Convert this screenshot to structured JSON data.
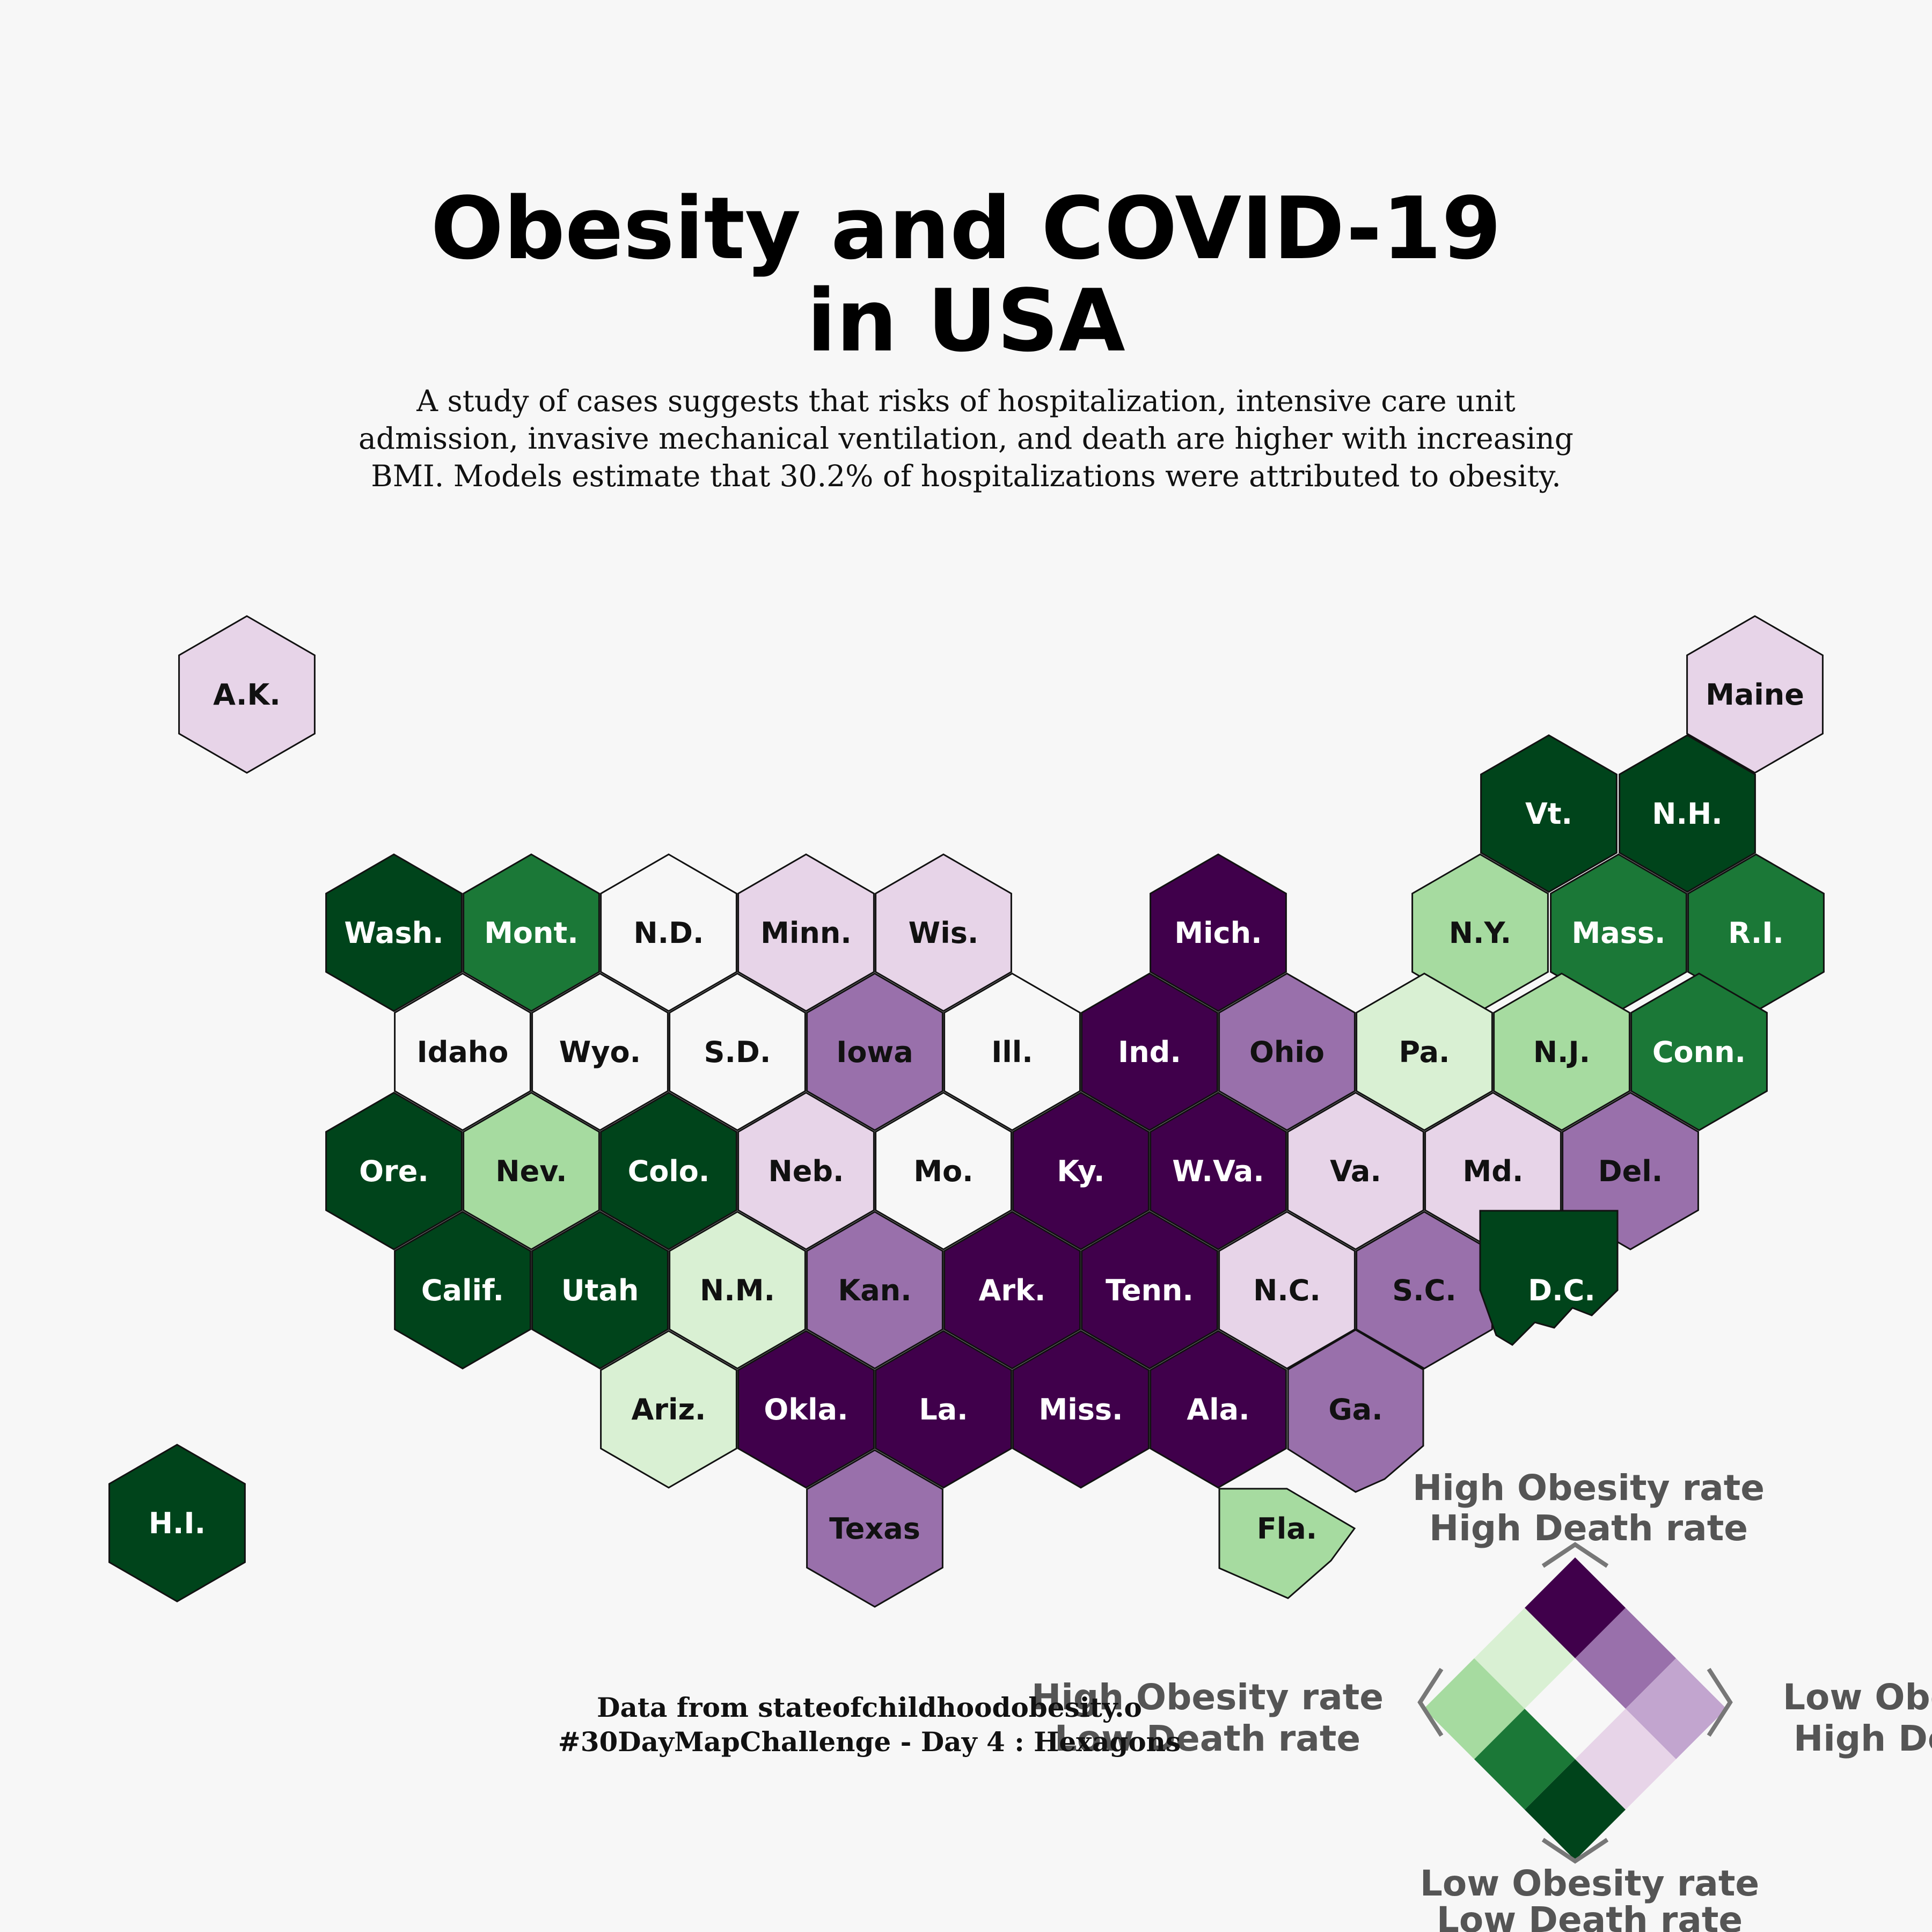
{
  "title_lines": [
    "Obesity and COVID-19",
    "in USA"
  ],
  "subtitle_lines": [
    "A study of cases suggests that risks of hospitalization, intensive care unit",
    "admission, invasive mechanical ventilation, and death are higher with increasing",
    "BMI. Models estimate that 30.2% of hospitalizations were attributed to obesity."
  ],
  "credits": {
    "source": "Data from stateofchildhoodobesity.o",
    "challenge": "#30DayMapChallenge - Day 4 : Hexagons"
  },
  "palette": {
    "P3": "#40004b",
    "P2": "#9970ab",
    "P1": "#e7d4e8",
    "N0": "#f7f7f7",
    "G1": "#d9f0d3",
    "G2": "#a6dba0",
    "G3": "#1b7837",
    "G4": "#00441b",
    "legend_light_purple": "#c2a5cf",
    "legend_mid_green": "#5aae61"
  },
  "legend": {
    "top": [
      "High Obesity rate",
      "High Death rate"
    ],
    "left": [
      "High Obesity rate",
      "Low Death rate"
    ],
    "right": [
      "Low Obesity rate",
      "High Death rate"
    ],
    "bottom": [
      "Low Obesity rate",
      "Low Death rate"
    ]
  },
  "states": [
    {
      "label": "A.K.",
      "color": "P1"
    },
    {
      "label": "Maine",
      "color": "P1"
    },
    {
      "label": "Vt.",
      "color": "G4"
    },
    {
      "label": "N.H.",
      "color": "G4"
    },
    {
      "label": "Wash.",
      "color": "G4"
    },
    {
      "label": "Mont.",
      "color": "G3"
    },
    {
      "label": "N.D.",
      "color": "N0"
    },
    {
      "label": "Minn.",
      "color": "P1"
    },
    {
      "label": "Wis.",
      "color": "P1"
    },
    {
      "label": "Mich.",
      "color": "P3"
    },
    {
      "label": "N.Y.",
      "color": "G2"
    },
    {
      "label": "Mass.",
      "color": "G3"
    },
    {
      "label": "R.I.",
      "color": "G3"
    },
    {
      "label": "Idaho",
      "color": "N0"
    },
    {
      "label": "Wyo.",
      "color": "N0"
    },
    {
      "label": "S.D.",
      "color": "N0"
    },
    {
      "label": "Iowa",
      "color": "P2"
    },
    {
      "label": "Ill.",
      "color": "N0"
    },
    {
      "label": "Ind.",
      "color": "P3"
    },
    {
      "label": "Ohio",
      "color": "P2"
    },
    {
      "label": "Pa.",
      "color": "G1"
    },
    {
      "label": "N.J.",
      "color": "G2"
    },
    {
      "label": "Conn.",
      "color": "G3"
    },
    {
      "label": "Ore.",
      "color": "G4"
    },
    {
      "label": "Nev.",
      "color": "G2"
    },
    {
      "label": "Colo.",
      "color": "G4"
    },
    {
      "label": "Neb.",
      "color": "P1"
    },
    {
      "label": "Mo.",
      "color": "N0"
    },
    {
      "label": "Ky.",
      "color": "P3"
    },
    {
      "label": "W.Va.",
      "color": "P3"
    },
    {
      "label": "Va.",
      "color": "P1"
    },
    {
      "label": "Md.",
      "color": "P1"
    },
    {
      "label": "Del.",
      "color": "P2"
    },
    {
      "label": "Calif.",
      "color": "G4"
    },
    {
      "label": "Utah",
      "color": "G4"
    },
    {
      "label": "N.M.",
      "color": "G1"
    },
    {
      "label": "Kan.",
      "color": "P2"
    },
    {
      "label": "Ark.",
      "color": "P3"
    },
    {
      "label": "Tenn.",
      "color": "P3"
    },
    {
      "label": "N.C.",
      "color": "P1"
    },
    {
      "label": "S.C.",
      "color": "P2"
    },
    {
      "label": "D.C.",
      "color": "G4"
    },
    {
      "label": "Ariz.",
      "color": "G1"
    },
    {
      "label": "Okla.",
      "color": "P3"
    },
    {
      "label": "La.",
      "color": "P3"
    },
    {
      "label": "Miss.",
      "color": "P3"
    },
    {
      "label": "Ala.",
      "color": "P3"
    },
    {
      "label": "Ga.",
      "color": "P2"
    },
    {
      "label": "H.I.",
      "color": "G4"
    },
    {
      "label": "Texas",
      "color": "P2"
    },
    {
      "label": "Fla.",
      "color": "G2"
    }
  ]
}
